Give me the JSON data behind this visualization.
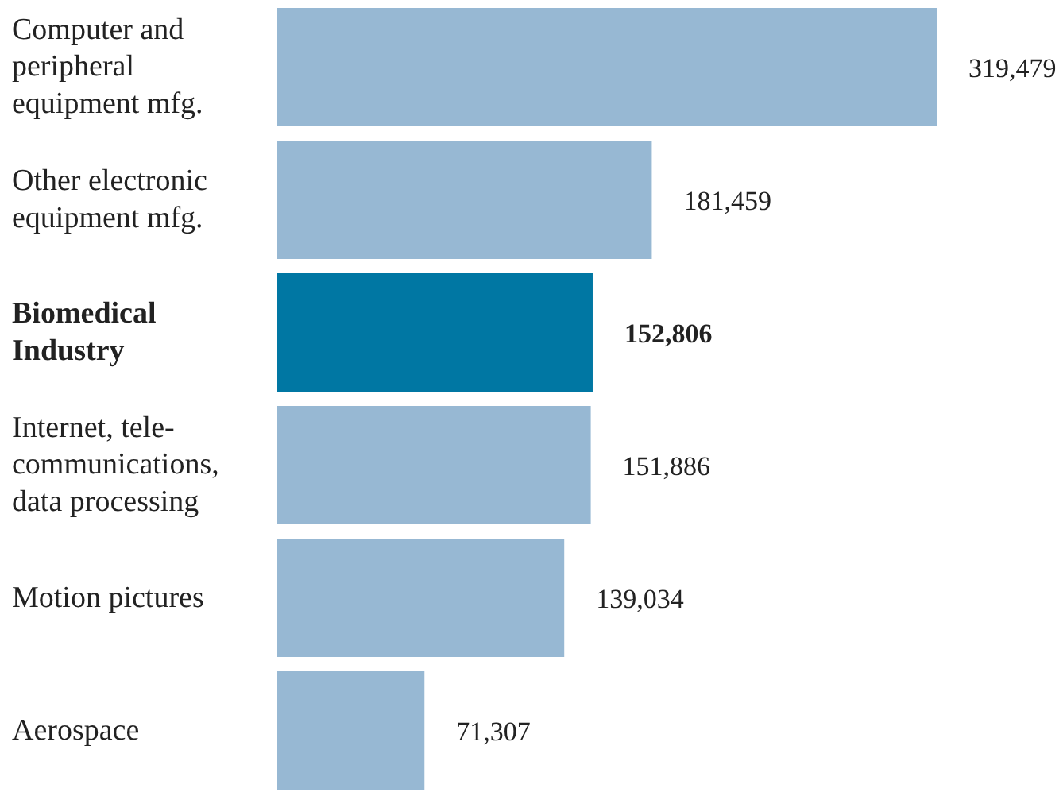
{
  "chart_data": {
    "type": "bar",
    "orientation": "horizontal",
    "categories": [
      "Computer and peripheral equipment mfg.",
      "Other electronic equipment mfg.",
      "Biomedical Industry",
      "Internet, tele-communications, data processing",
      "Motion pictures",
      "Aerospace"
    ],
    "values": [
      319479,
      181459,
      152806,
      151886,
      139034,
      71307
    ],
    "value_labels": [
      "319,479",
      "181,459",
      "152,806",
      "151,886",
      "139,034",
      "71,307"
    ],
    "colors": [
      "#97b8d3",
      "#97b8d3",
      "#0077a3",
      "#97b8d3",
      "#97b8d3",
      "#97b8d3"
    ]
  }
}
